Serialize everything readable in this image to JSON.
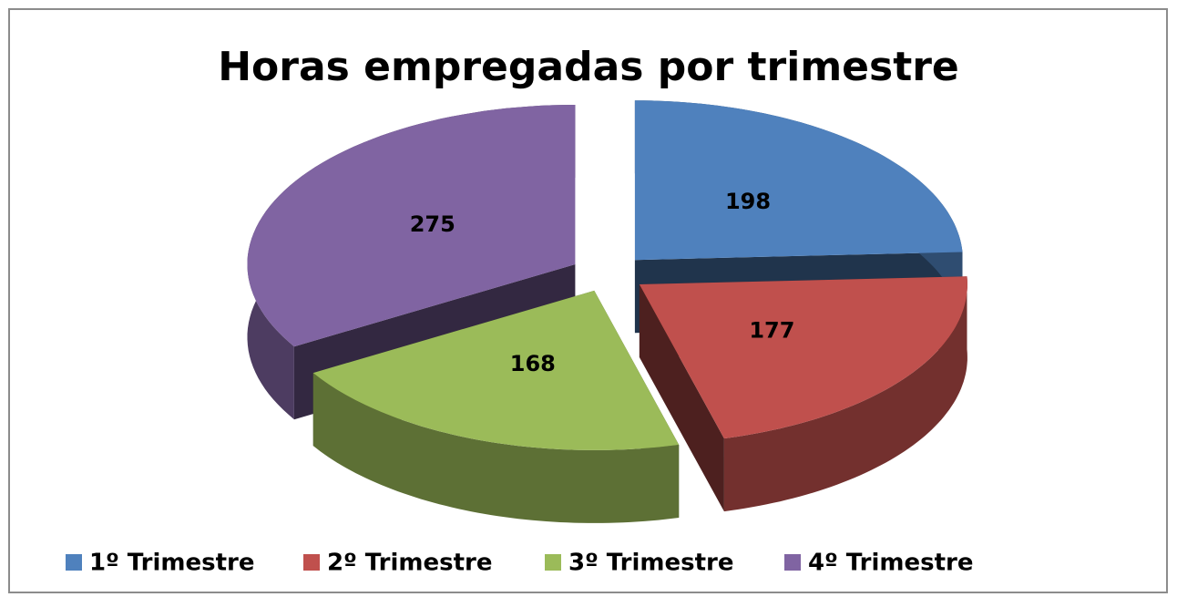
{
  "chart_data": {
    "type": "pie",
    "title": "Horas empregadas por trimestre",
    "categories": [
      "1º Trimestre",
      "2º Trimestre",
      "3º Trimestre",
      "4º Trimestre"
    ],
    "values": [
      198,
      177,
      168,
      275
    ],
    "colors": [
      "#4f81bd",
      "#c0504d",
      "#9bbb59",
      "#8064a2"
    ],
    "legend": "bottom"
  }
}
